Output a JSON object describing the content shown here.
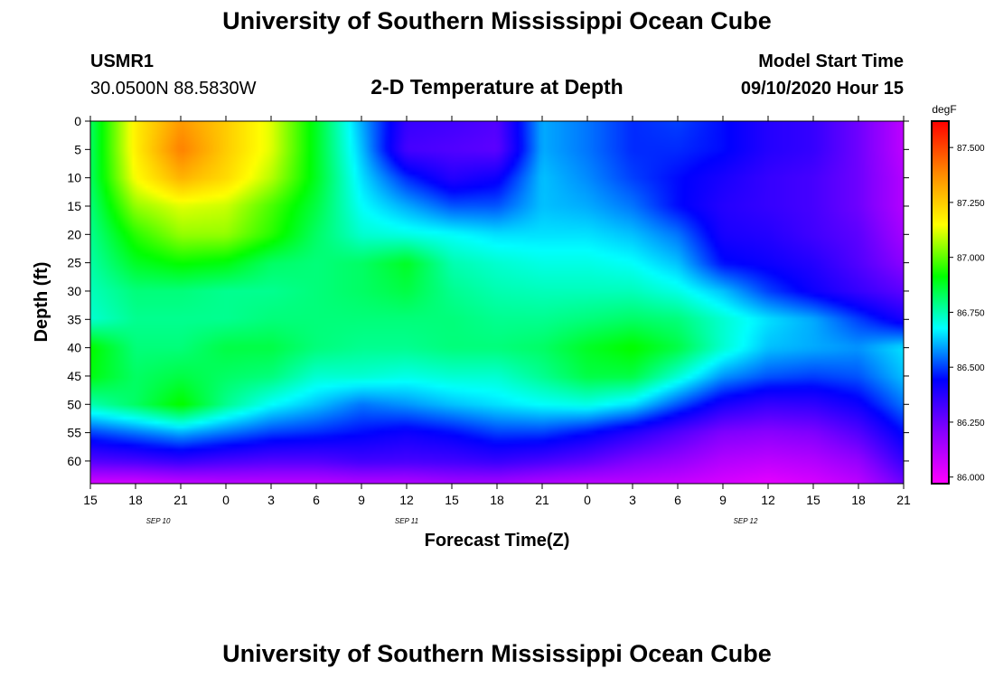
{
  "header": {
    "title": "University of Southern Mississippi Ocean Cube",
    "station_id": "USMR1",
    "station_coords": "30.0500N 88.5830W",
    "model_start_label": "Model Start Time",
    "model_start_value": "09/10/2020 Hour 15",
    "footer_title": "University of Southern Mississippi Ocean Cube"
  },
  "chart_data": {
    "type": "heatmap",
    "title": "2-D Temperature at Depth",
    "xlabel": "Forecast Time(Z)",
    "ylabel": "Depth (ft)",
    "x_tick_labels": [
      "15",
      "18",
      "21",
      "0",
      "3",
      "6",
      "9",
      "12",
      "15",
      "18",
      "21",
      "0",
      "3",
      "6",
      "9",
      "12",
      "15",
      "18",
      "21"
    ],
    "date_labels": [
      {
        "label": "SEP 10",
        "x_index": 1.5
      },
      {
        "label": "SEP 11",
        "x_index": 7
      },
      {
        "label": "SEP 12",
        "x_index": 14.5
      }
    ],
    "y_ticks": [
      0,
      5,
      10,
      15,
      20,
      25,
      30,
      35,
      40,
      45,
      50,
      55,
      60
    ],
    "ylim": [
      64,
      0
    ],
    "xlim_hours": [
      0,
      54
    ],
    "colorbar": {
      "unit": "degF",
      "range": [
        85.97,
        87.62
      ],
      "tick_values": [
        86.0,
        86.25,
        86.5,
        86.75,
        87.0,
        87.25,
        87.5
      ],
      "tick_labels": [
        "86.000",
        "86.250",
        "86.500",
        "86.750",
        "87.000",
        "87.250",
        "87.500"
      ],
      "color_stops": [
        "#ff00ff",
        "#8800ff",
        "#0000ff",
        "#00ffff",
        "#00ff00",
        "#ffff00",
        "#ff8800",
        "#ff0000"
      ]
    },
    "hours": [
      0,
      3,
      6,
      9,
      12,
      15,
      18,
      21,
      24,
      27,
      30,
      33,
      36,
      39,
      42,
      45,
      48,
      51,
      54
    ],
    "depths_ft": [
      0,
      5,
      10,
      15,
      20,
      25,
      30,
      35,
      40,
      45,
      50,
      55,
      60,
      64
    ],
    "temperature_degF": [
      [
        86.82,
        87.18,
        87.35,
        87.25,
        87.12,
        86.88,
        86.6,
        86.35,
        86.33,
        86.3,
        86.6,
        86.55,
        86.48,
        86.5,
        86.45,
        86.38,
        86.35,
        86.25,
        86.1
      ],
      [
        86.82,
        87.18,
        87.4,
        87.25,
        87.12,
        86.88,
        86.62,
        86.32,
        86.3,
        86.28,
        86.6,
        86.55,
        86.48,
        86.48,
        86.45,
        86.38,
        86.35,
        86.25,
        86.1
      ],
      [
        86.82,
        87.15,
        87.3,
        87.22,
        87.08,
        86.88,
        86.65,
        86.48,
        86.38,
        86.42,
        86.62,
        86.57,
        86.5,
        86.45,
        86.4,
        86.35,
        86.32,
        86.25,
        86.12
      ],
      [
        86.8,
        87.05,
        87.12,
        87.1,
        86.98,
        86.85,
        86.68,
        86.6,
        86.52,
        86.52,
        86.62,
        86.6,
        86.55,
        86.45,
        86.38,
        86.35,
        86.32,
        86.25,
        86.12
      ],
      [
        86.78,
        86.95,
        87.05,
        87.05,
        86.95,
        86.82,
        86.72,
        86.7,
        86.68,
        86.65,
        86.65,
        86.65,
        86.62,
        86.55,
        86.4,
        86.38,
        86.33,
        86.28,
        86.15
      ],
      [
        86.76,
        86.88,
        86.92,
        86.9,
        86.82,
        86.8,
        86.82,
        86.88,
        86.75,
        86.72,
        86.7,
        86.7,
        86.68,
        86.62,
        86.45,
        86.42,
        86.38,
        86.3,
        86.2
      ],
      [
        86.74,
        86.8,
        86.8,
        86.78,
        86.78,
        86.8,
        86.82,
        86.85,
        86.78,
        86.75,
        86.74,
        86.74,
        86.74,
        86.7,
        86.62,
        86.5,
        86.42,
        86.35,
        86.28
      ],
      [
        86.72,
        86.78,
        86.78,
        86.78,
        86.8,
        86.8,
        86.8,
        86.8,
        86.8,
        86.78,
        86.78,
        86.8,
        86.82,
        86.8,
        86.72,
        86.65,
        86.6,
        86.5,
        86.4
      ],
      [
        86.92,
        86.8,
        86.8,
        86.85,
        86.85,
        86.8,
        86.78,
        86.78,
        86.8,
        86.8,
        86.82,
        86.88,
        86.92,
        86.85,
        86.72,
        86.62,
        86.6,
        86.58,
        86.65
      ],
      [
        86.9,
        86.82,
        86.85,
        86.82,
        86.8,
        86.72,
        86.72,
        86.7,
        86.72,
        86.72,
        86.78,
        86.85,
        86.85,
        86.72,
        86.58,
        86.52,
        86.5,
        86.52,
        86.62
      ],
      [
        86.75,
        86.82,
        86.92,
        86.78,
        86.68,
        86.62,
        86.55,
        86.58,
        86.62,
        86.65,
        86.68,
        86.7,
        86.65,
        86.52,
        86.4,
        86.35,
        86.36,
        86.42,
        86.55
      ],
      [
        86.5,
        86.55,
        86.6,
        86.55,
        86.5,
        86.48,
        86.45,
        86.42,
        86.45,
        86.5,
        86.5,
        86.45,
        86.38,
        86.3,
        86.22,
        86.2,
        86.22,
        86.3,
        86.45
      ],
      [
        86.3,
        86.32,
        86.35,
        86.32,
        86.3,
        86.3,
        86.33,
        86.32,
        86.33,
        86.35,
        86.32,
        86.28,
        86.22,
        86.18,
        86.12,
        86.1,
        86.12,
        86.18,
        86.35
      ],
      [
        86.05,
        86.05,
        86.08,
        86.1,
        86.1,
        86.1,
        86.12,
        86.12,
        86.15,
        86.15,
        86.12,
        86.1,
        86.1,
        86.08,
        86.05,
        86.02,
        86.05,
        86.1,
        86.25
      ]
    ]
  }
}
